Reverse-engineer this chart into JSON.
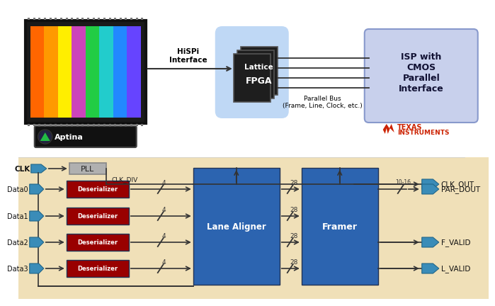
{
  "top_bg": "#ffffff",
  "bottom_bg": "#f0e0b8",
  "chip_colors": [
    "#ff8800",
    "#ffcc00",
    "#cc44cc",
    "#44cc44",
    "#44cccc",
    "#4488ff",
    "#8844ff"
  ],
  "chip_border": "#111111",
  "chip_body": "#1a1a1a",
  "aptina_bg": "#111111",
  "aptina_green": "#22aa44",
  "aptina_text": "Aptina",
  "hispi_text": "HiSPi\nInterface",
  "fpga_glow": "#b8d4f4",
  "fpga_card": "#222222",
  "lattice_text": "Lattice",
  "fpga_text": "FPGA",
  "isp_bg": "#c8d0ec",
  "isp_border": "#8899cc",
  "isp_text": "ISP with\nCMOS\nParallel\nInterface",
  "parallel_text": "Parallel Bus\n(Frame, Line, Clock, etc.)",
  "ti_color": "#cc2200",
  "ti_text1": "TEXAS",
  "ti_text2": "INSTRUMENTS",
  "line_color": "#333333",
  "block_blue": "#2c64b0",
  "block_red": "#990000",
  "pll_bg": "#b0b0b0",
  "pll_border": "#888888",
  "arrow_blue": "#3a8cb8",
  "clk_label": "CLK",
  "pll_label": "PLL",
  "clk_div_label": "CLK_DIV",
  "lane_aligner_label": "Lane Aligner",
  "framer_label": "Framer",
  "deserializer_label": "Deserializer",
  "data_labels": [
    "Data0",
    "Data1",
    "Data2",
    "Data3"
  ],
  "output_labels": [
    "CLK_OUT",
    "PAR_DOUT",
    "F_VALID",
    "L_VALID"
  ],
  "bus_left": "4",
  "bus_mid": "28",
  "bus_right": "10-16"
}
